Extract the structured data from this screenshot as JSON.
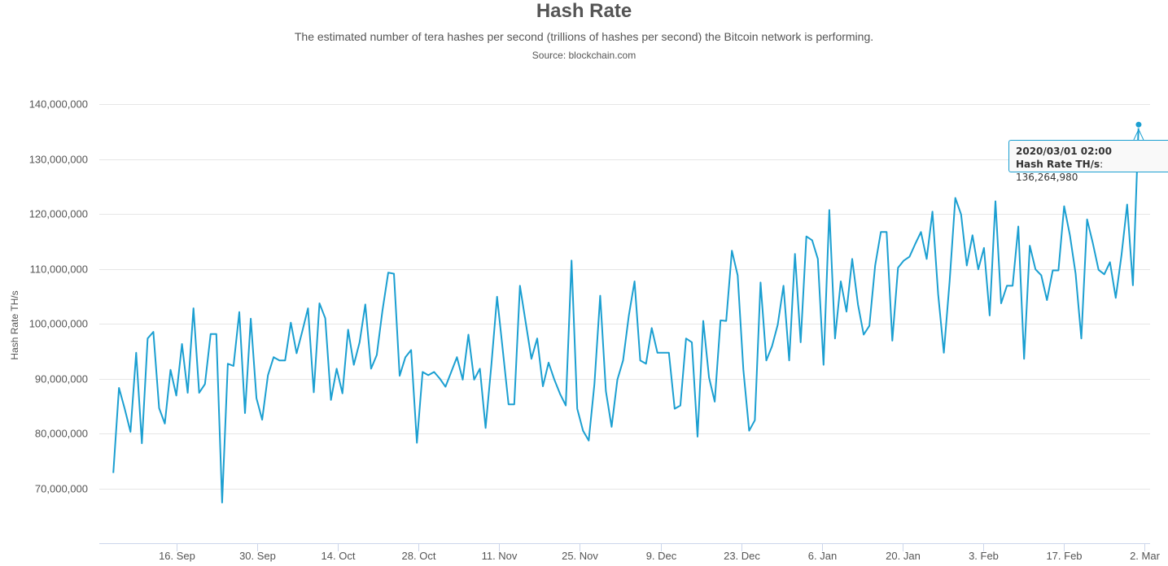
{
  "chart_data": {
    "type": "line",
    "title": "Hash Rate",
    "subtitle": "The estimated number of tera hashes per second (trillions of hashes per second) the Bitcoin network is performing.",
    "source": "Source: blockchain.com",
    "ylabel": "Hash Rate TH/s",
    "ylim": [
      60000000,
      140000000
    ],
    "yticks": [
      "70,000,000",
      "80,000,000",
      "90,000,000",
      "100,000,000",
      "110,000,000",
      "120,000,000",
      "130,000,000",
      "140,000,000"
    ],
    "ytick_values": [
      70000000,
      80000000,
      90000000,
      100000000,
      110000000,
      120000000,
      130000000,
      140000000
    ],
    "xlim": [
      "2019-09-03",
      "2020-03-02"
    ],
    "xticks": [
      {
        "label": "16. Sep",
        "date": "2019-09-16"
      },
      {
        "label": "30. Sep",
        "date": "2019-09-30"
      },
      {
        "label": "14. Oct",
        "date": "2019-10-14"
      },
      {
        "label": "28. Oct",
        "date": "2019-10-28"
      },
      {
        "label": "11. Nov",
        "date": "2019-11-11"
      },
      {
        "label": "25. Nov",
        "date": "2019-11-25"
      },
      {
        "label": "9. Dec",
        "date": "2019-12-09"
      },
      {
        "label": "23. Dec",
        "date": "2019-12-23"
      },
      {
        "label": "6. Jan",
        "date": "2020-01-06"
      },
      {
        "label": "20. Jan",
        "date": "2020-01-20"
      },
      {
        "label": "3. Feb",
        "date": "2020-02-03"
      },
      {
        "label": "17. Feb",
        "date": "2020-02-17"
      },
      {
        "label": "2. Mar",
        "date": "2020-03-02"
      }
    ],
    "grid": true,
    "legend": "none",
    "color": "#1b9fd1",
    "series": [
      {
        "name": "Hash Rate TH/s",
        "x_start": "2019-09-05",
        "x_end": "2020-03-01",
        "values": [
          72800000,
          88300000,
          84500000,
          80300000,
          94700000,
          78200000,
          97300000,
          98500000,
          84600000,
          81800000,
          91600000,
          86900000,
          96300000,
          87400000,
          102800000,
          87400000,
          89000000,
          98100000,
          98100000,
          67400000,
          92700000,
          92300000,
          102100000,
          83700000,
          100900000,
          86400000,
          82500000,
          90600000,
          93900000,
          93300000,
          93300000,
          100200000,
          94600000,
          98600000,
          102800000,
          87500000,
          103700000,
          101000000,
          86100000,
          91800000,
          87300000,
          98900000,
          92500000,
          96600000,
          103500000,
          91800000,
          94300000,
          102400000,
          109300000,
          109100000,
          90500000,
          93900000,
          95200000,
          78300000,
          91200000,
          90600000,
          91200000,
          90000000,
          88500000,
          91200000,
          93900000,
          89800000,
          98000000,
          89800000,
          91800000,
          81000000,
          92500000,
          104900000,
          95200000,
          85300000,
          85300000,
          106900000,
          100200000,
          93600000,
          97300000,
          88600000,
          92900000,
          89800000,
          87200000,
          85100000,
          111500000,
          84500000,
          80500000,
          78700000,
          89000000,
          105100000,
          87700000,
          81200000,
          89800000,
          93300000,
          101500000,
          107700000,
          93300000,
          92700000,
          99200000,
          94700000,
          94700000,
          94700000,
          84500000,
          85100000,
          97300000,
          96600000,
          79400000,
          100500000,
          90200000,
          85800000,
          100600000,
          100500000,
          113300000,
          108800000,
          91600000,
          80500000,
          82400000,
          107500000,
          93300000,
          95900000,
          99800000,
          106900000,
          93300000,
          112700000,
          96600000,
          115900000,
          115200000,
          111800000,
          92500000,
          120700000,
          97300000,
          107700000,
          102200000,
          111800000,
          103500000,
          98000000,
          99600000,
          110600000,
          116700000,
          116700000,
          96900000,
          110200000,
          111500000,
          112200000,
          114500000,
          116700000,
          111800000,
          120400000,
          105400000,
          94700000,
          107700000,
          122900000,
          119900000,
          110600000,
          116100000,
          109900000,
          113800000,
          101500000,
          122300000,
          103700000,
          106900000,
          106900000,
          117700000,
          93600000,
          114200000,
          109900000,
          108800000,
          104300000,
          109700000,
          109700000,
          121400000,
          116100000,
          109100000,
          97300000,
          119000000,
          114700000,
          109800000,
          109000000,
          111200000,
          104700000,
          112400000,
          121700000,
          107000000,
          136264980
        ]
      }
    ],
    "tooltip": {
      "date": "2020/03/01 02:00",
      "series_label": "Hash Rate TH/s",
      "value_text": ": 136,264,980"
    }
  }
}
